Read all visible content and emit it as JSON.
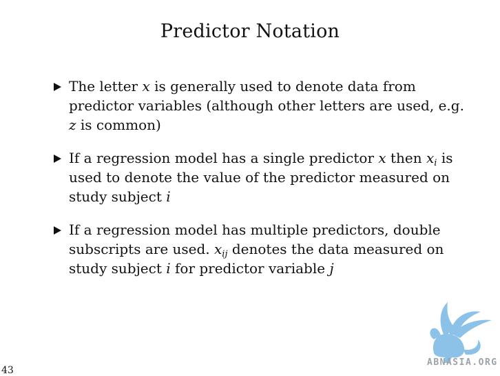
{
  "slide": {
    "title": "Predictor Notation",
    "page_number": "43"
  },
  "bullets": [
    {
      "parts": [
        "The letter ",
        "x",
        " is generally used to denote data from predictor variables (although other letters are used, e.g. ",
        "z",
        " is common)"
      ]
    },
    {
      "parts": [
        "If a regression model has a single predictor ",
        "x",
        " then ",
        "x",
        "i",
        " is used to denote the value of the predictor measured on study subject ",
        "i"
      ]
    },
    {
      "parts": [
        "If a regression model has multiple predictors, double subscripts are used. ",
        "x",
        "ij",
        " denotes the data measured on study subject ",
        "i",
        " for predictor variable ",
        "j"
      ]
    }
  ],
  "watermark": {
    "text": "ABNASIA.ORG",
    "icon": "griffin-icon",
    "color": "#8cc2e8"
  }
}
